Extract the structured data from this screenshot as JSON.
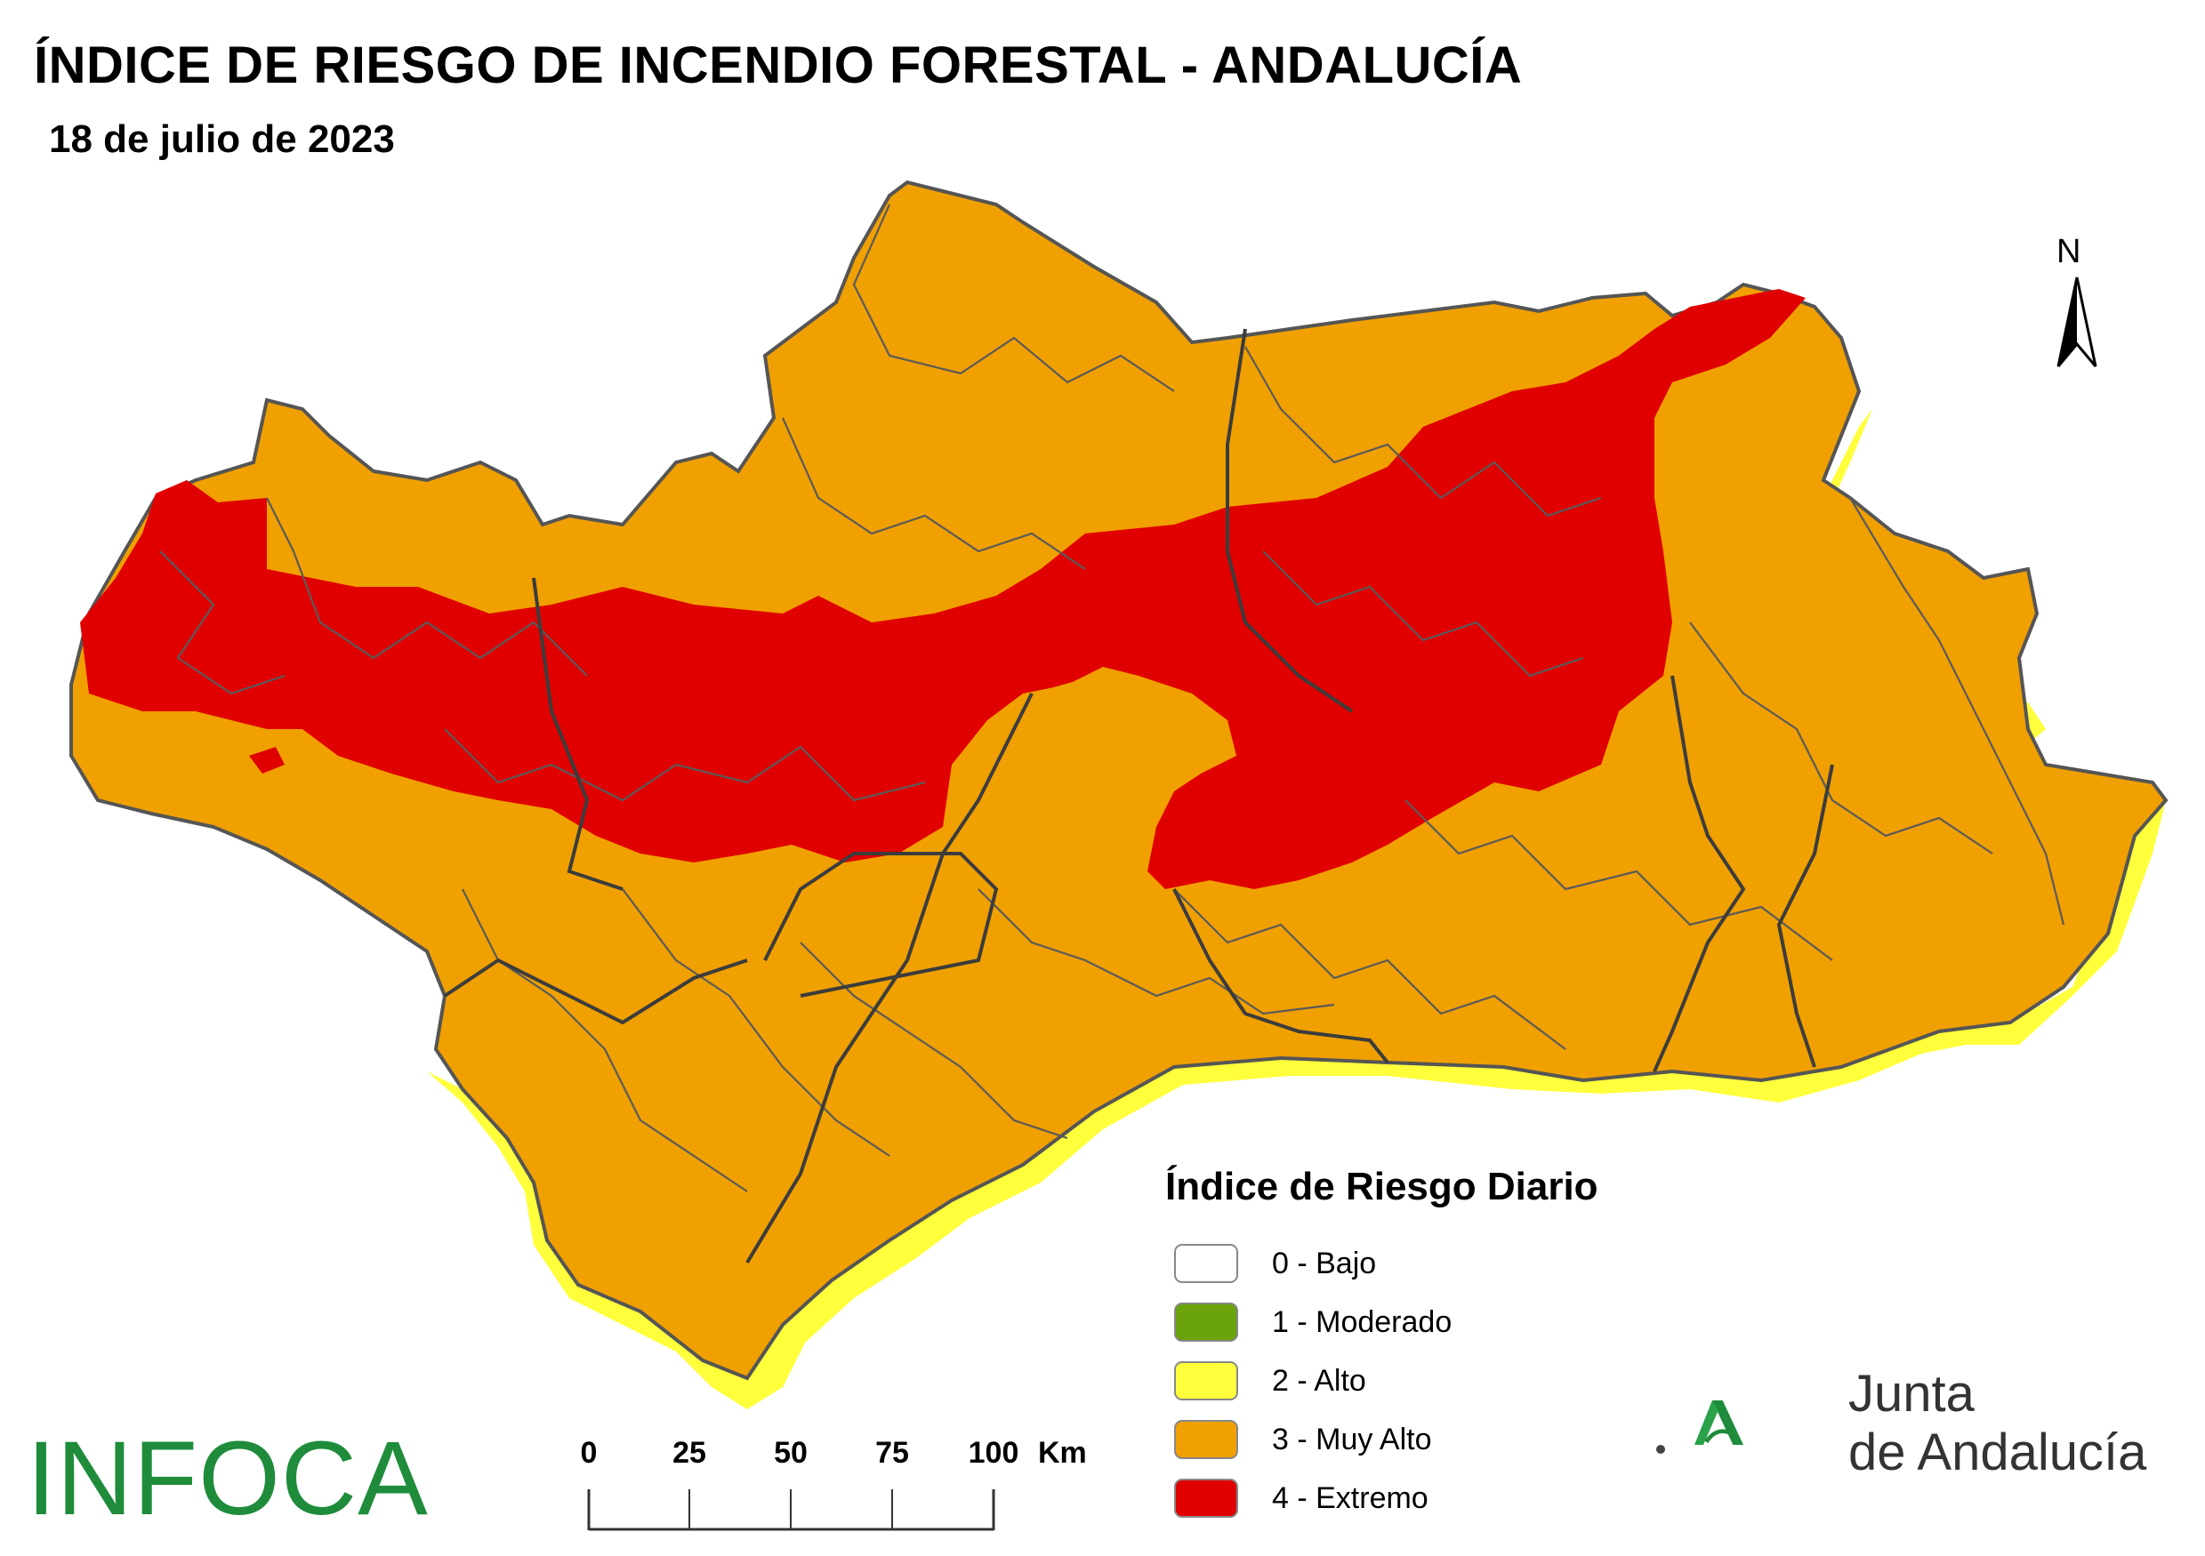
{
  "header": {
    "title": "ÍNDICE DE RIESGO DE INCENDIO FORESTAL - ANDALUCÍA",
    "date": "18 de julio de 2023"
  },
  "north_arrow": {
    "label": "N"
  },
  "legend": {
    "title": "Índice de Riesgo Diario",
    "items": [
      {
        "label": "0 - Bajo",
        "color": "#ffffff"
      },
      {
        "label": "1 - Moderado",
        "color": "#6aa30a"
      },
      {
        "label": "2 - Alto",
        "color": "#ffff3c"
      },
      {
        "label": "3 - Muy Alto",
        "color": "#f0a000"
      },
      {
        "label": "4 - Extremo",
        "color": "#e00000"
      }
    ]
  },
  "scale": {
    "ticks": [
      "0",
      "25",
      "50",
      "75",
      "100"
    ],
    "unit": "Km"
  },
  "logos": {
    "infoca": "INFOCA",
    "junta_line1": "Junta",
    "junta_line2": "de Andalucía"
  },
  "colors": {
    "muy_alto": "#f0a000",
    "extremo": "#e00000",
    "alto": "#ffff3c",
    "boundary": "#555555",
    "junta_green": "#1e8c3a"
  }
}
